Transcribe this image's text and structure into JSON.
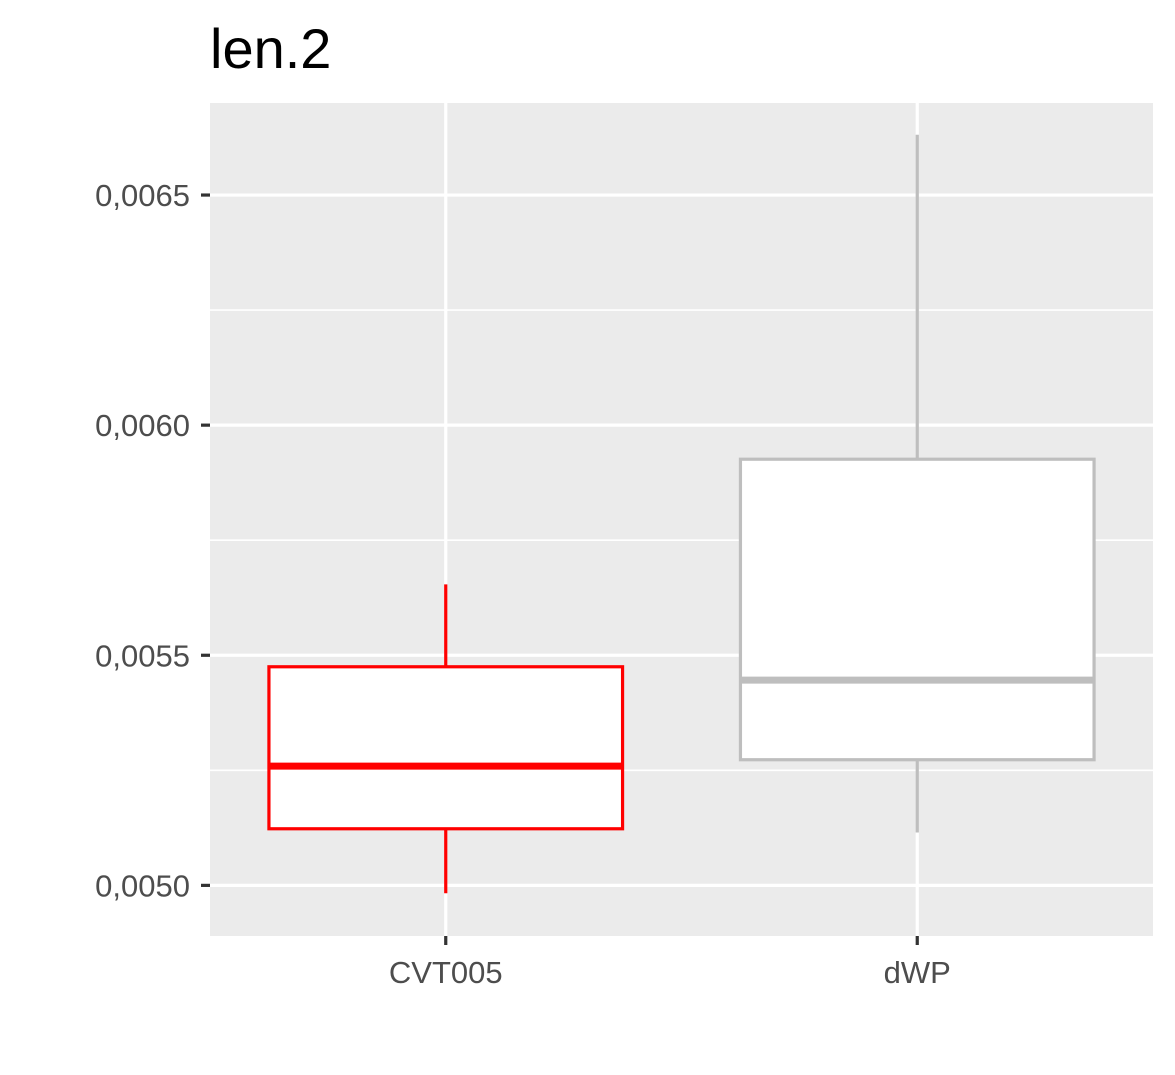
{
  "chart_data": {
    "type": "boxplot",
    "title": "len.2",
    "xlabel": "",
    "ylabel": "",
    "categories": [
      "CVT005",
      "dWP"
    ],
    "ylim": [
      0.00489,
      0.0067
    ],
    "y_ticks": [
      0.005,
      0.0055,
      0.006,
      0.0065
    ],
    "y_tick_labels": [
      "0,0050",
      "0,0055",
      "0,0060",
      "0,0065"
    ],
    "boxes": [
      {
        "category": "CVT005",
        "color": "#ff0000",
        "whisker_low": 0.004983,
        "q1": 0.005123,
        "median": 0.005259,
        "q3": 0.005475,
        "whisker_high": 0.005654
      },
      {
        "category": "dWP",
        "color": "#bebebe",
        "whisker_low": 0.005115,
        "q1": 0.005273,
        "median": 0.005446,
        "q3": 0.005926,
        "whisker_high": 0.006631
      }
    ],
    "panel_background": "#ebebeb",
    "grid_color": "#ffffff",
    "box_fill": "#ffffff",
    "axis_text_color": "#4d4d4d",
    "grid": true,
    "legend": "none"
  }
}
